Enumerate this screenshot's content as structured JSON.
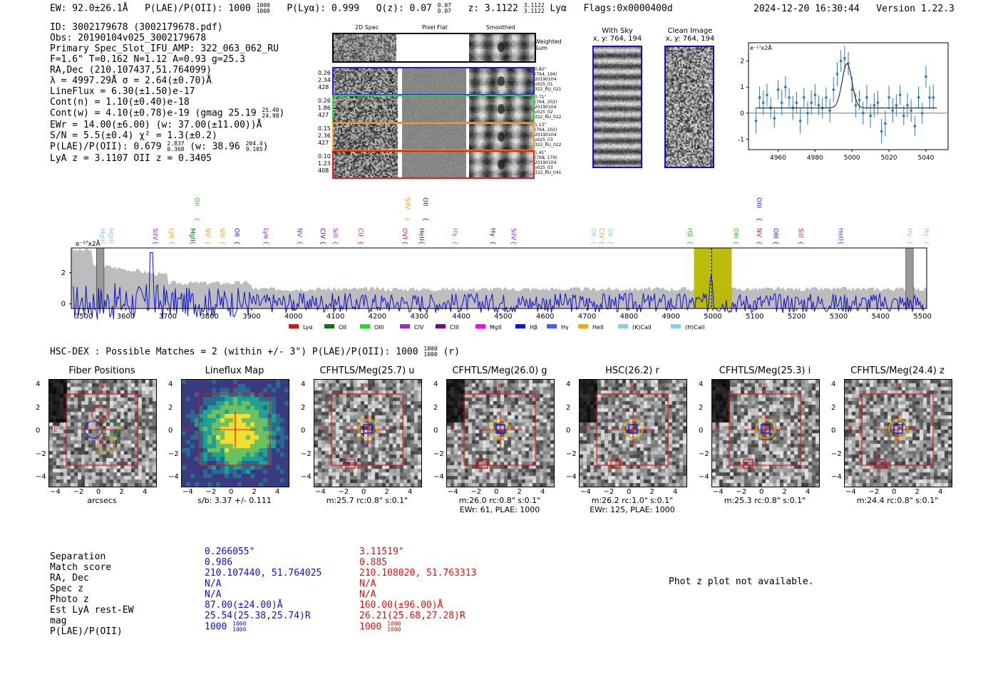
{
  "header": {
    "ew": "EW: 92.0±26.1Å",
    "plae_label": "P(LAE)/P(OII): 1000",
    "plae_hi": "1000",
    "plae_lo": "1000",
    "plya": "P(Lyα): 0.999",
    "qz": "Q(z): 0.07",
    "qz_hi": "0.07",
    "qz_lo": "0.07",
    "z": "z: 3.1122",
    "z_hi": "3.1122",
    "z_lo": "3.1122",
    "line": "Lyα",
    "flags": "Flags:0x0000400d",
    "timestamp": "2024-12-20 16:30:44",
    "version": "Version 1.22.3"
  },
  "info": {
    "id": "ID: 3002179678 (3002179678.pdf)",
    "obs": "Obs: 20190104v025_3002179678",
    "primary": "Primary Spec_Slot_IFU_AMP: 322_063_062_RU",
    "fwhm": "F=1.6\"  T=0.162  N=1.12  A=0.93  g=25.3",
    "radec": "RA,Dec (210.107437,51.764099)",
    "lambda": "λ = 4997.29Å  σ = 2.64(±0.70)Å",
    "lineflux": "LineFlux = 6.30(±1.50)e-17",
    "contn": "Cont(n) = 1.10(±0.40)e-18",
    "contw": "Cont(w) = 4.10(±0.78)e-19 (gmag 25.19",
    "gmag_hi": "25.40",
    "gmag_lo": "24.98",
    "ewr": "EWr = 14.00(±6.00) (w: 37.00(±11.00))Å",
    "sn": "S/N = 5.5(±0.4)  χ² = 1.3(±0.2)",
    "plae": "P(LAE)/P(OII): 0.679",
    "plae_hi": "2.837",
    "plae_lo": "0.368",
    "plae_w": "(w: 38.96",
    "plae_w_hi": "204.4",
    "plae_w_lo": "9.105",
    "lyaz": "LyA z = 3.1107  OII z = 0.3405"
  },
  "cutout_panel": {
    "col_2d": "2D Spec",
    "col_flat": "Pixel Flat",
    "col_smooth": "Smoothed",
    "weighted": "Weighted\nSum",
    "rows": [
      {
        "left": [
          "0.26",
          "2.34",
          "428"
        ],
        "right": [
          "0.82\"",
          "(764, 194)",
          "20190104",
          "v025_01",
          "322_RU_021"
        ],
        "color": "#2020d0"
      },
      {
        "left": [
          "0.26",
          "1.86",
          "427"
        ],
        "right": [
          "0.71\"",
          "(764, 202)",
          "20190104",
          "v025_02",
          "322_RU_022"
        ],
        "color": "#30d030"
      },
      {
        "left": [
          "0.15",
          "2.36",
          "427"
        ],
        "right": [
          "1.13\"",
          "(764, 202)",
          "20190104",
          "v025_03",
          "322_RU_022"
        ],
        "color": "#f0a020"
      },
      {
        "left": [
          "0.10",
          "1.23",
          "408"
        ],
        "right": [
          "1.41\"",
          "(768, 179)",
          "20190104",
          "v025_03",
          "322_RU_041"
        ],
        "color": "#e02020"
      }
    ],
    "with_sky": "With Sky",
    "with_sky_xy": "x, y: 764, 194",
    "clean": "Clean Image",
    "clean_xy": "x, y: 764, 194"
  },
  "zoom_chart": {
    "unit": "e⁻¹⁷x2Å"
  },
  "chart_data": [
    {
      "type": "scatter",
      "title": "",
      "ylabel": "e-17 x2Å",
      "xlim": [
        4944,
        5052
      ],
      "ylim": [
        -1.4,
        2.7
      ],
      "xticks": [
        4960,
        4980,
        5000,
        5020,
        5040
      ],
      "yticks": [
        -1,
        0,
        1,
        2
      ],
      "points": [
        [
          4948,
          -0.3
        ],
        [
          4950,
          0.6
        ],
        [
          4952,
          0.4
        ],
        [
          4954,
          0.7
        ],
        [
          4956,
          0.2
        ],
        [
          4958,
          -0.2
        ],
        [
          4960,
          0.9
        ],
        [
          4962,
          0.4
        ],
        [
          4964,
          1.0
        ],
        [
          4966,
          0.6
        ],
        [
          4968,
          0.2
        ],
        [
          4970,
          0.4
        ],
        [
          4972,
          -0.3
        ],
        [
          4974,
          0.6
        ],
        [
          4976,
          0.0
        ],
        [
          4978,
          0.4
        ],
        [
          4980,
          0.7
        ],
        [
          4982,
          0.3
        ],
        [
          4984,
          0.2
        ],
        [
          4986,
          0.6
        ],
        [
          4988,
          0.1
        ],
        [
          4990,
          0.9
        ],
        [
          4992,
          1.5
        ],
        [
          4994,
          2.0
        ],
        [
          4996,
          2.1
        ],
        [
          4998,
          1.9
        ],
        [
          5000,
          0.9
        ],
        [
          5002,
          0.3
        ],
        [
          5004,
          0.5
        ],
        [
          5006,
          0.0
        ],
        [
          5008,
          0.6
        ],
        [
          5010,
          -0.1
        ],
        [
          5012,
          0.3
        ],
        [
          5014,
          0.4
        ],
        [
          5016,
          -0.7
        ],
        [
          5018,
          -0.4
        ],
        [
          5020,
          0.6
        ],
        [
          5022,
          0.1
        ],
        [
          5024,
          0.3
        ],
        [
          5026,
          0.7
        ],
        [
          5028,
          -0.1
        ],
        [
          5030,
          0.3
        ],
        [
          5032,
          0.1
        ],
        [
          5034,
          -0.5
        ],
        [
          5036,
          0.6
        ],
        [
          5038,
          0.0
        ],
        [
          5040,
          1.4
        ],
        [
          5042,
          0.6
        ],
        [
          5044,
          0.6
        ]
      ],
      "fit": "gaussian center 4997.3 amp 1.7 sigma 2.64 baseline 0.2"
    },
    {
      "type": "line",
      "xlim": [
        3470,
        5510
      ],
      "ylim": [
        -0.3,
        3.6
      ],
      "xticks": [
        3500,
        3600,
        3700,
        3800,
        3900,
        4000,
        4100,
        4200,
        4300,
        4400,
        4500,
        4600,
        4700,
        4800,
        4900,
        5000,
        5100,
        5200,
        5300,
        5400,
        5500
      ],
      "yticks": [
        0,
        2
      ],
      "unit": "e⁻¹⁷x2Å",
      "highlight_band": [
        4955,
        5045
      ],
      "marker_x": 4997,
      "gray_boxes": [
        3530,
        5460
      ],
      "line_labels": [
        {
          "x": 3535,
          "name": "MgII",
          "color": "#87ceeb",
          "row": 1
        },
        {
          "x": 3555,
          "name": "MgII",
          "color": "#87ceeb",
          "row": 1
        },
        {
          "x": 3660,
          "name": "SiIV",
          "color": "#a020f0",
          "row": 1
        },
        {
          "x": 3700,
          "name": "Lyα",
          "color": "#ffa500",
          "row": 1
        },
        {
          "x": 3750,
          "name": "MgII",
          "color": "#008000",
          "row": 1
        },
        {
          "x": 3760,
          "name": "OII",
          "color": "#20d020",
          "row": 0
        },
        {
          "x": 3785,
          "name": "NV",
          "color": "#ffa500",
          "row": 1
        },
        {
          "x": 3820,
          "name": "SiII",
          "color": "#ffa500",
          "row": 1
        },
        {
          "x": 3855,
          "name": "OII",
          "color": "#2020d0",
          "row": 1
        },
        {
          "x": 3925,
          "name": "Lyα",
          "color": "#a020f0",
          "row": 1
        },
        {
          "x": 4005,
          "name": "NV",
          "color": "#a020f0",
          "row": 1
        },
        {
          "x": 4060,
          "name": "CIV",
          "color": "#800080",
          "row": 1
        },
        {
          "x": 4090,
          "name": "SiII",
          "color": "#a020f0",
          "row": 1
        },
        {
          "x": 4150,
          "name": "CII",
          "color": "#ff00ff",
          "row": 1
        },
        {
          "x": 4255,
          "name": "OVI",
          "color": "#e02020",
          "row": 1
        },
        {
          "x": 4262,
          "name": "SiIV",
          "color": "#ffa500",
          "row": 0
        },
        {
          "x": 4295,
          "name": "HeII",
          "color": "#800080",
          "row": 1
        },
        {
          "x": 4305,
          "name": "OII",
          "color": "#2020d0",
          "row": 0
        },
        {
          "x": 4375,
          "name": "Hγ",
          "color": "#20d020",
          "row": 1
        },
        {
          "x": 4465,
          "name": "Hγ",
          "color": "#2020d0",
          "row": 1
        },
        {
          "x": 4515,
          "name": "SiIV",
          "color": "#a020f0",
          "row": 1
        },
        {
          "x": 4705,
          "name": "OII",
          "color": "#87ceeb",
          "row": 1
        },
        {
          "x": 4725,
          "name": "CIV",
          "color": "#ffa500",
          "row": 1
        },
        {
          "x": 4745,
          "name": "OII",
          "color": "#87ceeb",
          "row": 1
        },
        {
          "x": 4935,
          "name": "Hβ",
          "color": "#20d020",
          "row": 1
        },
        {
          "x": 5045,
          "name": "OIII",
          "color": "#20d020",
          "row": 1
        },
        {
          "x": 5100,
          "name": "NV",
          "color": "#e02020",
          "row": 1
        },
        {
          "x": 5100,
          "name": "OIII",
          "color": "#2020d0",
          "row": 0
        },
        {
          "x": 5140,
          "name": "OIII",
          "color": "#2020d0",
          "row": 1
        },
        {
          "x": 5200,
          "name": "SiII",
          "color": "#e02020",
          "row": 1
        },
        {
          "x": 5295,
          "name": "HeII",
          "color": "#a020f0",
          "row": 1
        },
        {
          "x": 5460,
          "name": "Hγ",
          "color": "#87ceeb",
          "row": 1
        },
        {
          "x": 5500,
          "name": "Hγ",
          "color": "#87ceeb",
          "row": 1
        }
      ],
      "legend": [
        {
          "name": "Lyα",
          "color": "#e01010"
        },
        {
          "name": "OII",
          "color": "#107010"
        },
        {
          "name": "OIII",
          "color": "#20e020"
        },
        {
          "name": "CIV",
          "color": "#8a2be2"
        },
        {
          "name": "CIII",
          "color": "#800080"
        },
        {
          "name": "MgII",
          "color": "#ff00ff"
        },
        {
          "name": "Hβ",
          "color": "#1010f0"
        },
        {
          "name": "Hγ",
          "color": "#4060e0"
        },
        {
          "name": "HeII",
          "color": "#ffa500"
        },
        {
          "name": "(K)CaII",
          "color": "#87ceeb"
        },
        {
          "name": "(H)CaII",
          "color": "#87ceeb"
        }
      ]
    }
  ],
  "hsc": {
    "line": "HSC-DEX : Possible Matches = 2 (within +/- 3\")  P(LAE)/P(OII): 1000",
    "plae_hi": "1000",
    "plae_lo": "1000",
    "tail": "(r)"
  },
  "cutouts": [
    {
      "title": "Fiber Positions",
      "caption": "arcsecs",
      "caption2": ""
    },
    {
      "title": "Lineflux Map",
      "caption": "s/b: 3.37 +/- 0.111",
      "caption2": ""
    },
    {
      "title": "CFHTLS/Meg(25.7) u",
      "caption": "m:25.7 rc:0.8\"  s:0.1\"",
      "caption2": ""
    },
    {
      "title": "CFHTLS/Meg(26.0) g",
      "caption": "m:26.0 rc:0.8\"  s:0.1\"",
      "caption2": "EWr: 61, PLAE: 1000"
    },
    {
      "title": "HSC(26.2) r",
      "caption": "m:26.2 rc:1.0\"  s:0.1\"",
      "caption2": "EWr: 125, PLAE: 1000"
    },
    {
      "title": "CFHTLS/Meg(25.3) i",
      "caption": "m:25.3 rc:0.8\"  s:0.1\"",
      "caption2": ""
    },
    {
      "title": "CFHTLS/Meg(24.4) z",
      "caption": "m:24.4 rc:0.8\"  s:0.1\"",
      "caption2": ""
    }
  ],
  "axis_ticks": [
    "4",
    "2",
    "0",
    "−2",
    "−4"
  ],
  "axis_xticks": [
    "−4",
    "−2",
    "0",
    "2",
    "4"
  ],
  "compass": {
    "n": "N",
    "e": "E"
  },
  "matches": {
    "labels": [
      "Separation",
      "Match score",
      "RA, Dec",
      "Spec z",
      "Photo z",
      "Est LyA rest-EW",
      "mag",
      "P(LAE)/P(OII)"
    ],
    "m1": [
      "0.266055\"",
      "0.986",
      "210.107440, 51.764025",
      "N/A",
      "N/A",
      "87.00(±24.00)Å",
      "25.54(25.38,25.74)R",
      "1000"
    ],
    "m1_plae_hi": "1000",
    "m1_plae_lo": "1000",
    "m2": [
      "3.11519\"",
      "0.885",
      "210.108020, 51.763313",
      "N/A",
      "N/A",
      "160.00(±96.00)Å",
      "26.21(25.68,27.28)R",
      "1000"
    ],
    "m2_plae_hi": "1000",
    "m2_plae_lo": "1000",
    "photz": "Phot z plot not available."
  }
}
